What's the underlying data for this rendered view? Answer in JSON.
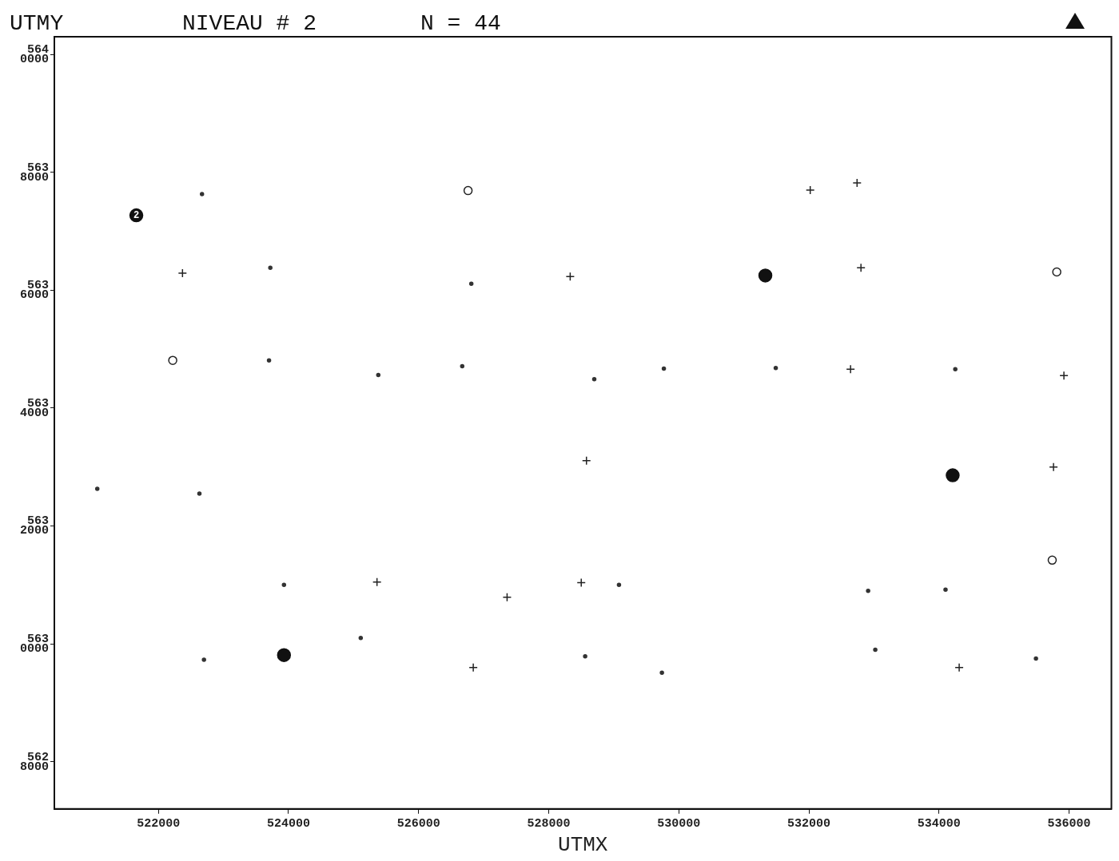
{
  "chart_data": {
    "type": "scatter",
    "title": "NIVEAU # 2",
    "xlabel": "UTMX",
    "ylabel": "UTMY",
    "annotations": [
      "N = 44",
      {
        "text": "2",
        "x": 521660,
        "y": 5637270
      }
    ],
    "xlim": [
      520400,
      536650
    ],
    "ylim": [
      5627200,
      5640300
    ],
    "xticks": [
      522000,
      524000,
      526000,
      528000,
      530000,
      532000,
      534000,
      536000
    ],
    "yticks": [
      5628000,
      5630000,
      5632000,
      5634000,
      5636000,
      5638000,
      5640000
    ],
    "grid": false,
    "legend": false,
    "series": [
      {
        "marker": "circle",
        "color": "#333333",
        "x": [
          521060,
          522670,
          522630,
          523720,
          523700,
          523930,
          522700,
          525110,
          525380,
          526670,
          526810,
          528700,
          529770,
          529080,
          528560,
          529740,
          531490,
          534250,
          532910,
          533020,
          534100,
          535490
        ],
        "values": [
          5632630,
          5637630,
          5632550,
          5636380,
          5634810,
          5631000,
          5629730,
          5630100,
          5634560,
          5634710,
          5636110,
          5634490,
          5634670,
          5631000,
          5629790,
          5629510,
          5634680,
          5634660,
          5630900,
          5629900,
          5630920,
          5629750
        ]
      },
      {
        "marker": "cross",
        "color": "#222222",
        "x": [
          522370,
          525360,
          526840,
          527360,
          528330,
          528580,
          528500,
          532020,
          532740,
          532800,
          532640,
          534310,
          535760,
          535920
        ],
        "values": [
          5636290,
          5631050,
          5629600,
          5630790,
          5636230,
          5633110,
          5631040,
          5637700,
          5637820,
          5636380,
          5634660,
          5629600,
          5633000,
          5634550
        ]
      },
      {
        "marker": "circle",
        "color": "#222222",
        "x": [
          526760,
          522220,
          535810,
          535740
        ],
        "values": [
          5637690,
          5634810,
          5636310,
          5631420
        ]
      },
      {
        "type": "bubble",
        "marker": "circle",
        "color": "#111111",
        "x": [
          523930,
          531330,
          534210,
          521660
        ],
        "values": [
          5629810,
          5636250,
          5632860,
          5637270
        ],
        "sizes": [
          1,
          1,
          1,
          1
        ]
      }
    ]
  }
}
